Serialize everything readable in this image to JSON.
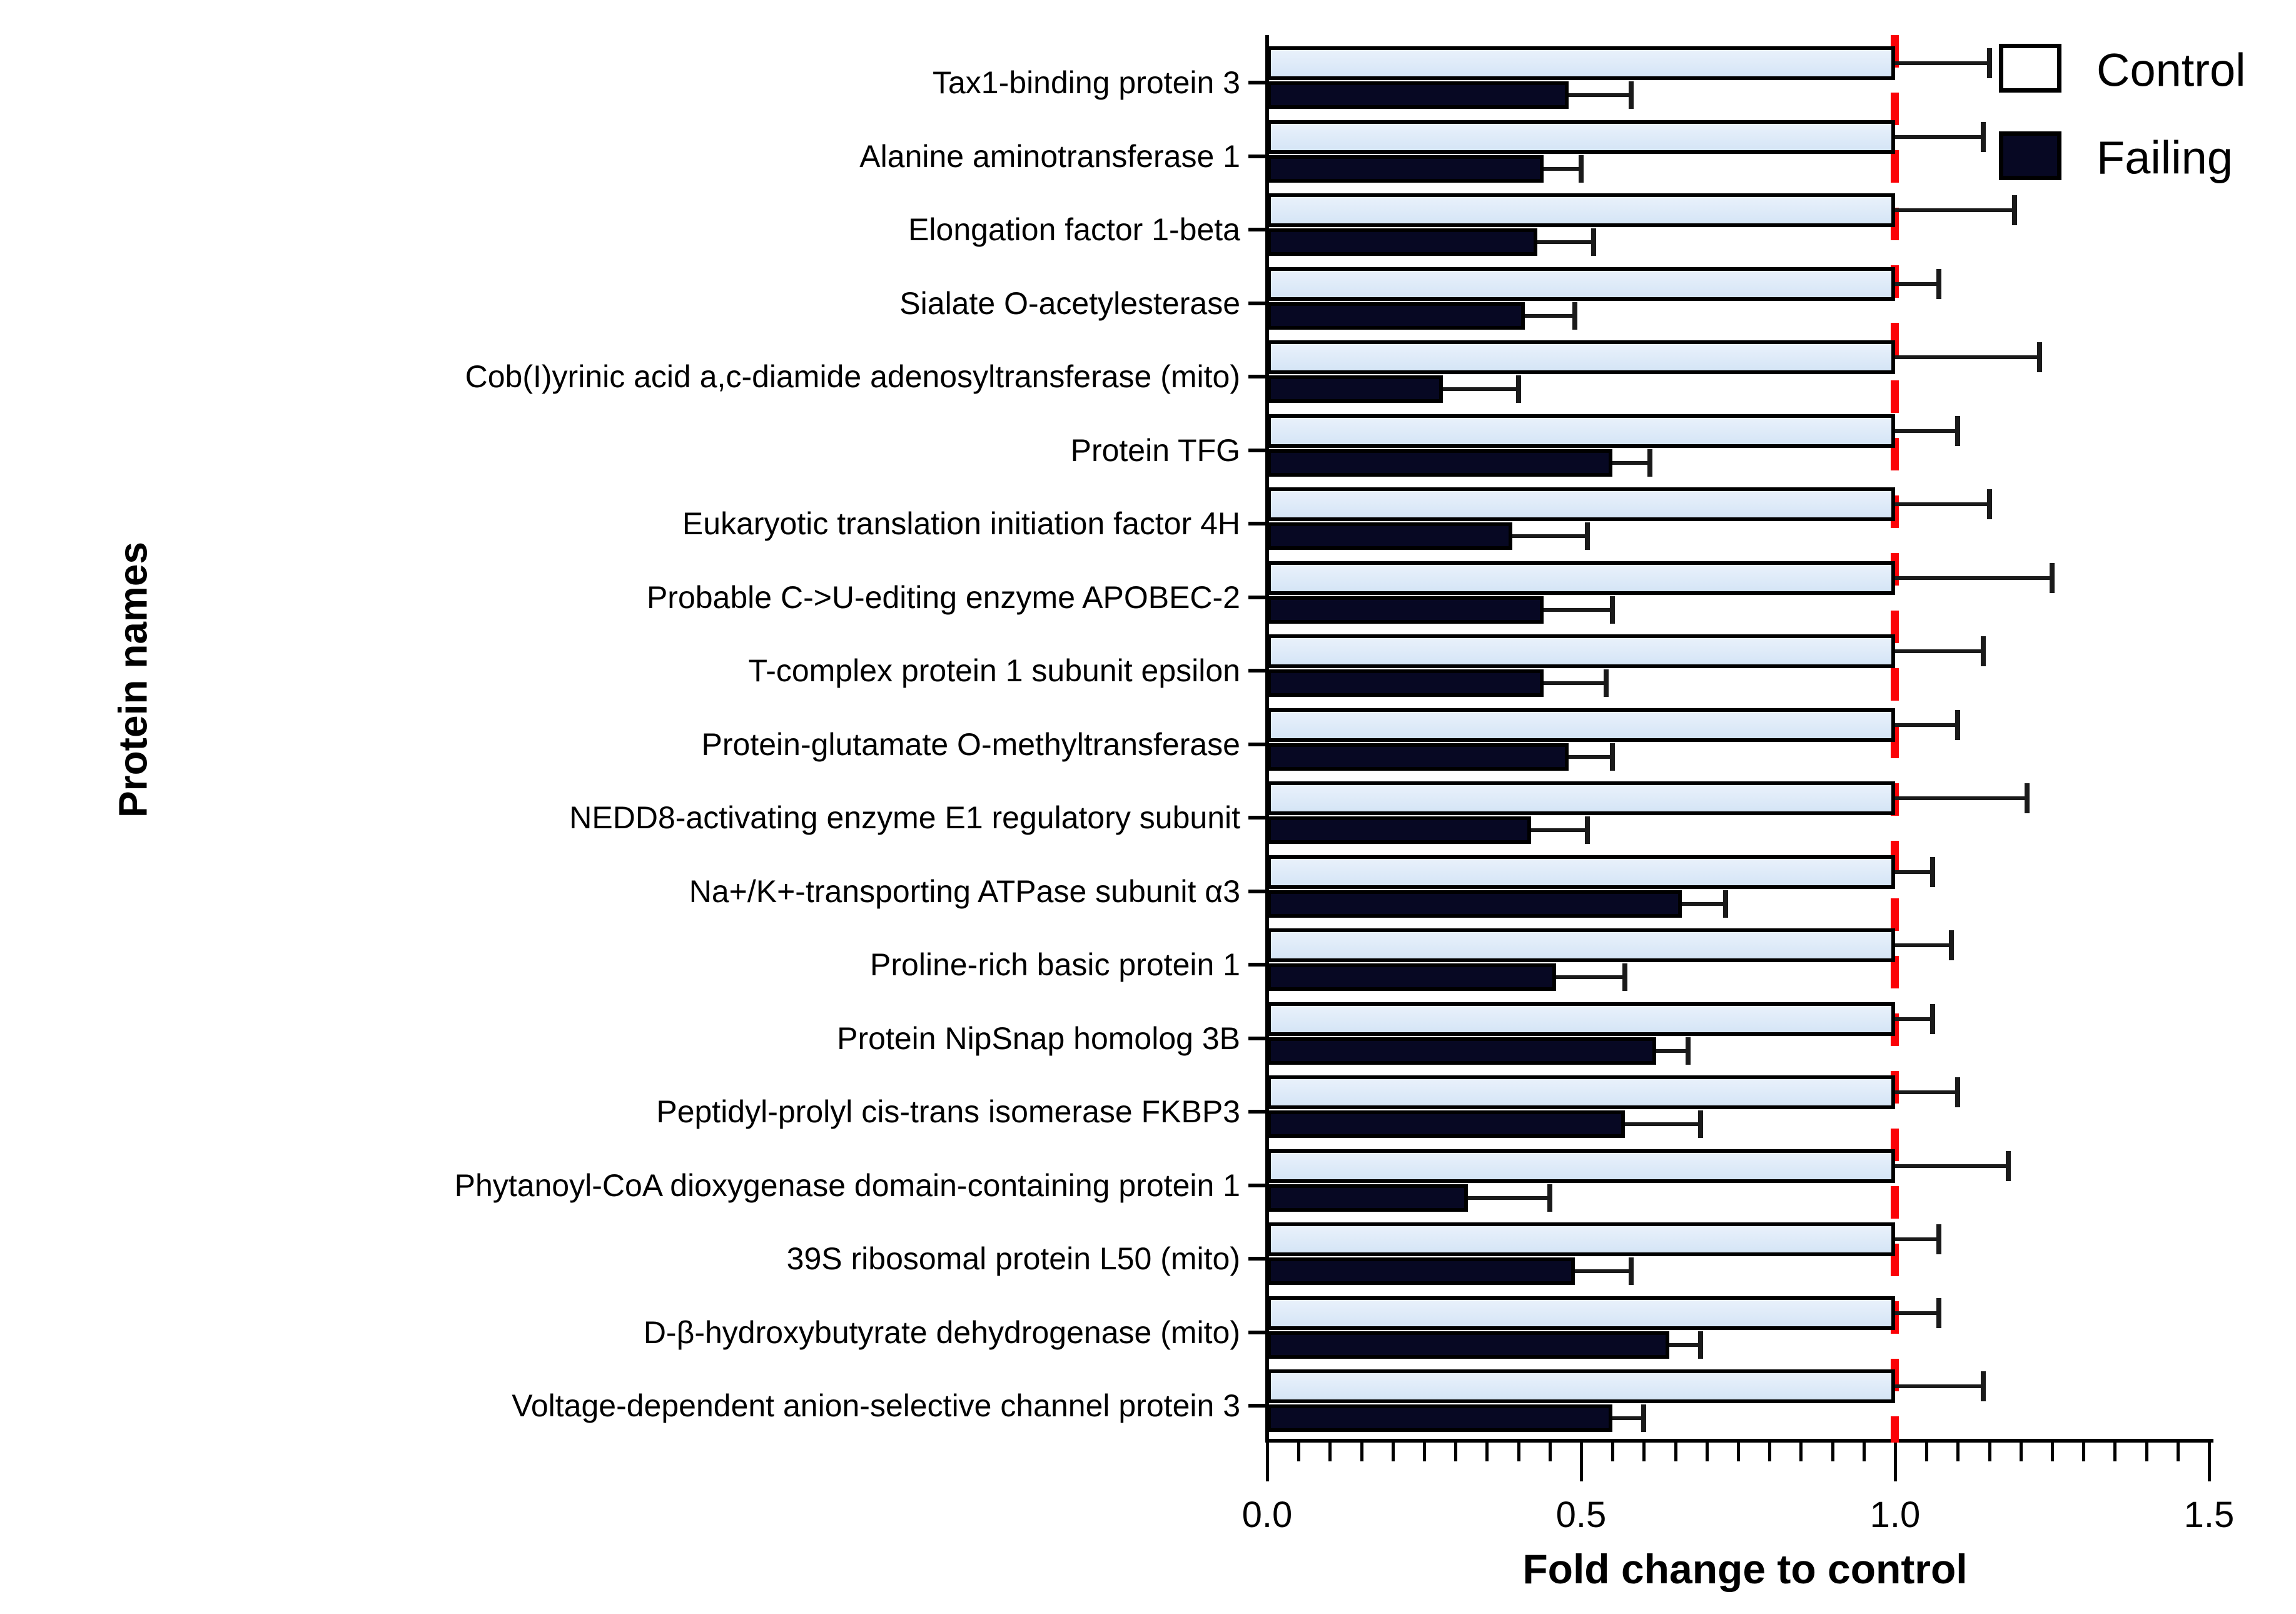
{
  "figure": {
    "y_axis_title": "Protein names",
    "x_axis_title": "Fold change to control",
    "legend": {
      "control_label": "Control",
      "failing_label": "Failing"
    },
    "colors": {
      "control_fill": "#d9e8f8",
      "failing_fill": "#070823",
      "bar_border": "#000000",
      "reference_line": "#fb0207",
      "error_bar": "#1a1a1a"
    }
  },
  "chart_data": {
    "type": "bar",
    "orientation": "horizontal",
    "title": "",
    "xlabel": "Fold change to control",
    "ylabel": "Protein names",
    "xlim": [
      0.0,
      1.5
    ],
    "x_ticks": [
      0.0,
      0.5,
      1.0,
      1.5
    ],
    "x_tick_labels": [
      "0.0",
      "0.5",
      "1.0",
      "1.5"
    ],
    "minor_tick_step": 0.05,
    "grid": false,
    "legend_position": "top-right",
    "reference_line_x": 1.0,
    "categories": [
      "Tax1-binding protein 3",
      "Alanine aminotransferase 1",
      "Elongation factor 1-beta",
      "Sialate O-acetylesterase",
      "Cob(I)yrinic acid a,c-diamide adenosyltransferase (mito)",
      "Protein TFG",
      "Eukaryotic translation initiation factor 4H",
      "Probable C->U-editing enzyme APOBEC-2",
      "T-complex protein 1 subunit epsilon",
      "Protein-glutamate O-methyltransferase",
      "NEDD8-activating enzyme E1 regulatory subunit",
      "Na+/K+-transporting ATPase subunit α3",
      "Proline-rich basic protein 1",
      "Protein NipSnap homolog 3B",
      "Peptidyl-prolyl cis-trans isomerase FKBP3",
      "Phytanoyl-CoA dioxygenase domain-containing protein 1",
      "39S ribosomal protein L50 (mito)",
      "D-β-hydroxybutyrate dehydrogenase (mito)",
      "Voltage-dependent anion-selective channel protein 3"
    ],
    "series": [
      {
        "name": "Control",
        "color": "#d9e8f8",
        "values": [
          1.0,
          1.0,
          1.0,
          1.0,
          1.0,
          1.0,
          1.0,
          1.0,
          1.0,
          1.0,
          1.0,
          1.0,
          1.0,
          1.0,
          1.0,
          1.0,
          1.0,
          1.0,
          1.0
        ],
        "errors": [
          0.15,
          0.14,
          0.19,
          0.07,
          0.23,
          0.1,
          0.15,
          0.25,
          0.14,
          0.1,
          0.21,
          0.06,
          0.09,
          0.06,
          0.1,
          0.18,
          0.07,
          0.07,
          0.14
        ]
      },
      {
        "name": "Failing",
        "color": "#070823",
        "values": [
          0.48,
          0.44,
          0.43,
          0.41,
          0.28,
          0.55,
          0.39,
          0.44,
          0.44,
          0.48,
          0.42,
          0.66,
          0.46,
          0.62,
          0.57,
          0.32,
          0.49,
          0.64,
          0.55
        ],
        "errors": [
          0.1,
          0.06,
          0.09,
          0.08,
          0.12,
          0.06,
          0.12,
          0.11,
          0.1,
          0.07,
          0.09,
          0.07,
          0.11,
          0.05,
          0.12,
          0.13,
          0.09,
          0.05,
          0.05
        ]
      }
    ]
  }
}
